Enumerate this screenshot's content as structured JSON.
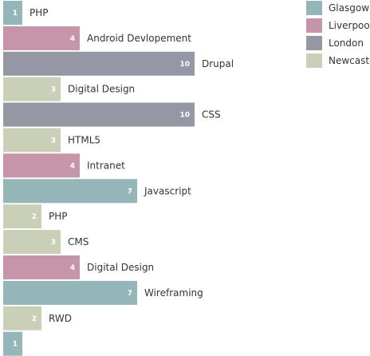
{
  "chart_data": {
    "type": "bar",
    "orientation": "horizontal",
    "legend": {
      "position": "top-right",
      "entries": [
        {
          "name": "Glasgow",
          "color": "#94b6b8"
        },
        {
          "name": "Liverpool",
          "color": "#c795a9"
        },
        {
          "name": "London",
          "color": "#9597a5"
        },
        {
          "name": "Newcaste",
          "color": "#cacfb8"
        }
      ]
    },
    "xlim": [
      0,
      10
    ],
    "bars": [
      {
        "label": "PHP",
        "value": 1,
        "series": "Glasgow"
      },
      {
        "label": "Android Devlopement",
        "value": 4,
        "series": "Liverpool"
      },
      {
        "label": "Drupal",
        "value": 10,
        "series": "London"
      },
      {
        "label": "Digital Design",
        "value": 3,
        "series": "Newcaste"
      },
      {
        "label": "CSS",
        "value": 10,
        "series": "London"
      },
      {
        "label": "HTML5",
        "value": 3,
        "series": "Newcaste"
      },
      {
        "label": "Intranet",
        "value": 4,
        "series": "Liverpool"
      },
      {
        "label": "Javascript",
        "value": 7,
        "series": "Glasgow"
      },
      {
        "label": "PHP",
        "value": 2,
        "series": "Newcaste"
      },
      {
        "label": "CMS",
        "value": 3,
        "series": "Newcaste"
      },
      {
        "label": "Digital Design",
        "value": 4,
        "series": "Liverpool"
      },
      {
        "label": "Wireframing",
        "value": 7,
        "series": "Glasgow"
      },
      {
        "label": "RWD",
        "value": 2,
        "series": "Newcaste"
      },
      {
        "label": "",
        "value": 1,
        "series": "Glasgow"
      }
    ]
  }
}
